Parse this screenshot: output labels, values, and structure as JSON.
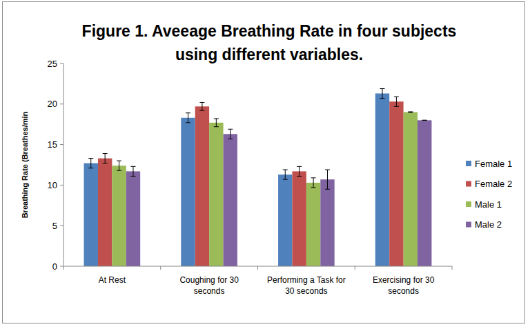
{
  "chart_data": {
    "type": "bar",
    "title": "Figure 1.  Aveeage Breathing Rate in four subjects using different variables.",
    "y_label": "Breathing Rate (Breathes/min",
    "categories": [
      "At Rest",
      "Coughing for 30 seconds",
      "Performing a Task for 30 seconds",
      "Exercising for 30 seconds"
    ],
    "series": [
      {
        "name": "Female 1",
        "color": "#4f81bd",
        "values": [
          12.7,
          18.3,
          11.3,
          21.3
        ],
        "errors": [
          0.6,
          0.6,
          0.6,
          0.6
        ]
      },
      {
        "name": "Female 2",
        "color": "#c0504d",
        "values": [
          13.3,
          19.7,
          11.7,
          20.3
        ],
        "errors": [
          0.6,
          0.5,
          0.6,
          0.6
        ]
      },
      {
        "name": "Male 1",
        "color": "#9bbb59",
        "values": [
          12.4,
          17.7,
          10.3,
          19.0
        ],
        "errors": [
          0.6,
          0.5,
          0.6,
          0.05
        ]
      },
      {
        "name": "Male 2",
        "color": "#8064a2",
        "values": [
          11.7,
          16.3,
          10.7,
          18.0
        ],
        "errors": [
          0.6,
          0.6,
          1.2,
          0.0
        ]
      }
    ],
    "ylim": [
      0,
      25
    ],
    "yticks": [
      0,
      5,
      10,
      15,
      20,
      25
    ],
    "grid": false,
    "legend": "right"
  }
}
